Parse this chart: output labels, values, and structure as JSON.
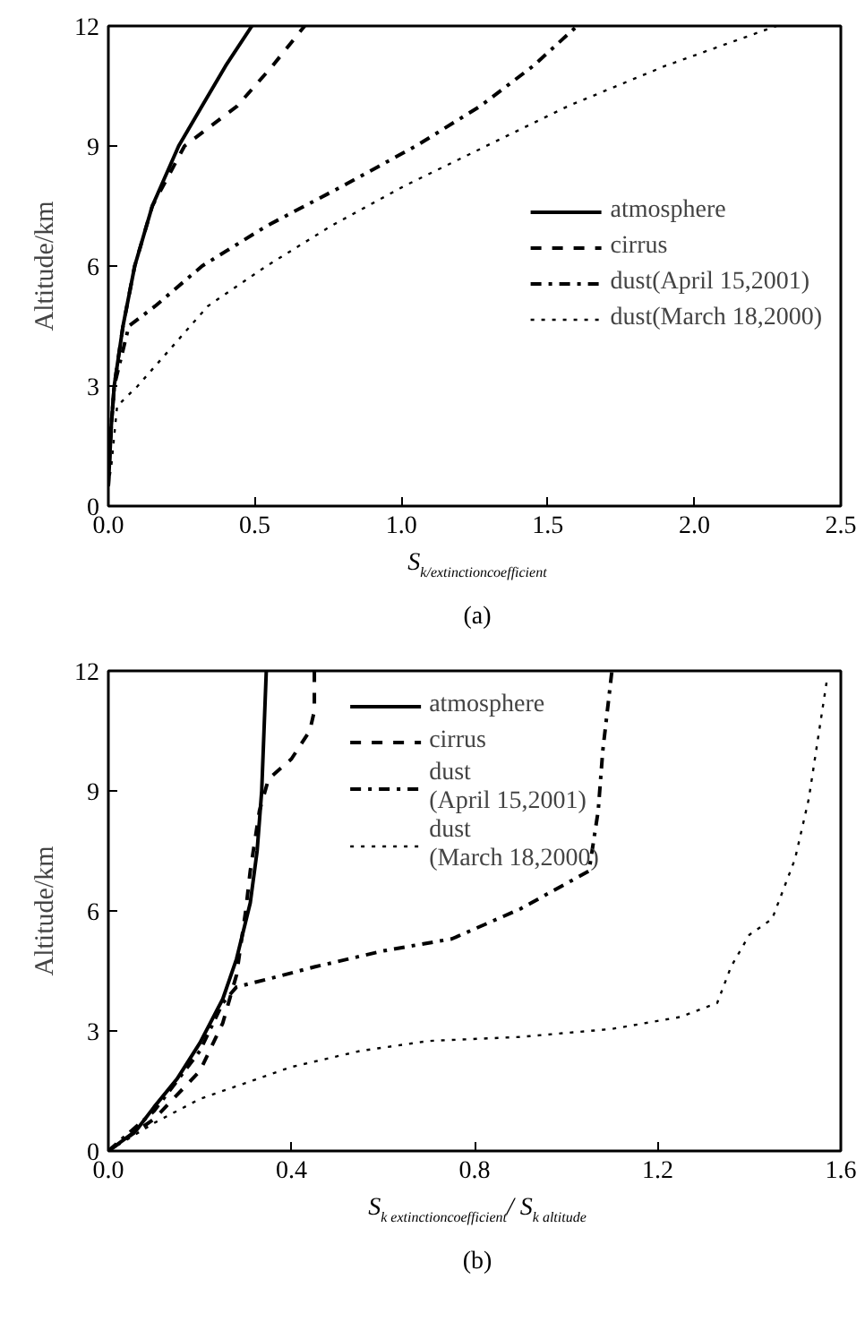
{
  "chart_data": [
    {
      "type": "line",
      "xlabel": "S$_{k/extinctioncoefficient}$",
      "ylabel": "Altitude/km",
      "annotations": [
        "(a)"
      ],
      "xlim": [
        0,
        2.5
      ],
      "ylim": [
        0,
        12
      ],
      "xticks": [
        {
          "value": 0,
          "label": "0.0"
        },
        0.5,
        {
          "value": 1,
          "label": "1.0"
        },
        1.5,
        {
          "value": 2,
          "label": "2.0"
        },
        2.5
      ],
      "yticks": [
        0,
        3,
        6,
        9,
        12
      ],
      "grid": false,
      "legend": "right",
      "series": [
        {
          "name": "atmosphere",
          "color": "#000000",
          "line_style": "solid",
          "x": [
            0.0,
            0.01,
            0.02,
            0.05,
            0.09,
            0.15,
            0.24,
            0.32,
            0.4,
            0.49
          ],
          "values": [
            0.5,
            2,
            3,
            4.5,
            6,
            7.5,
            9,
            10,
            11,
            12
          ]
        },
        {
          "name": "cirrus",
          "color": "#000000",
          "line_style": "dashed",
          "x": [
            0.0,
            0.01,
            0.02,
            0.05,
            0.09,
            0.15,
            0.26,
            0.44,
            0.56,
            0.67
          ],
          "values": [
            0.5,
            2,
            3,
            4.5,
            6,
            7.5,
            9,
            10,
            11,
            12
          ]
        },
        {
          "name": "dust(April 15,2001)",
          "color": "#000000",
          "line_style": "dashdot",
          "x": [
            0.0,
            0.01,
            0.02,
            0.07,
            0.16,
            0.32,
            0.54,
            0.8,
            1.05,
            1.27,
            1.45,
            1.6
          ],
          "values": [
            1,
            2,
            3,
            4.5,
            5,
            6,
            7,
            8,
            9,
            10,
            11,
            12
          ]
        },
        {
          "name": "dust(March 18,2000)",
          "color": "#000000",
          "line_style": "dotted",
          "x": [
            0.0,
            0.01,
            0.03,
            0.1,
            0.22,
            0.34,
            0.54,
            0.76,
            1.01,
            1.29,
            1.57,
            1.9,
            2.28
          ],
          "values": [
            0.5,
            1,
            2.5,
            3,
            4,
            5,
            6,
            7,
            8,
            9,
            10,
            11,
            12
          ]
        }
      ]
    },
    {
      "type": "line",
      "xlabel": "S$_{k extinctioncoefficient}$/ S$_{k altitude}$",
      "ylabel": "Altitude/km",
      "annotations": [
        "(b)"
      ],
      "xlim": [
        0,
        1.6
      ],
      "ylim": [
        0,
        12
      ],
      "xticks": [
        {
          "value": 0,
          "label": "0.0"
        },
        0.4,
        0.8,
        1.2,
        1.6
      ],
      "yticks": [
        0,
        3,
        6,
        9,
        12
      ],
      "grid": false,
      "legend": "top",
      "series": [
        {
          "name": "atmosphere",
          "color": "#000000",
          "line_style": "solid",
          "x": [
            0,
            0.06,
            0.1,
            0.15,
            0.2,
            0.25,
            0.28,
            0.31,
            0.325,
            0.335,
            0.34,
            0.345
          ],
          "values": [
            0,
            0.5,
            1.1,
            1.8,
            2.7,
            3.8,
            4.8,
            6.2,
            7.5,
            9,
            10.5,
            12
          ]
        },
        {
          "name": "cirrus",
          "color": "#000000",
          "line_style": "dashed",
          "x": [
            0,
            0.1,
            0.2,
            0.25,
            0.28,
            0.3,
            0.31,
            0.33,
            0.35,
            0.4,
            0.44,
            0.45,
            0.45
          ],
          "values": [
            0,
            0.8,
            2,
            3.2,
            4.4,
            6,
            7,
            8.5,
            9.3,
            9.8,
            10.5,
            11,
            12
          ]
        },
        {
          "name": "dust\n(April 15,2001)",
          "color": "#000000",
          "line_style": "dashdot",
          "x": [
            0,
            0.1,
            0.2,
            0.25,
            0.28,
            0.35,
            0.45,
            0.6,
            0.75,
            0.9,
            1.05,
            1.07,
            1.08,
            1.1
          ],
          "values": [
            0,
            1,
            2.5,
            3.7,
            4.1,
            4.3,
            4.6,
            5,
            5.3,
            6.05,
            7,
            8.5,
            10,
            12
          ]
        },
        {
          "name": "dust\n(March 18,2000)",
          "color": "#000000",
          "line_style": "dotted",
          "x": [
            0,
            0.1,
            0.2,
            0.3,
            0.4,
            0.55,
            0.7,
            0.9,
            1.1,
            1.25,
            1.33,
            1.36,
            1.4,
            1.45,
            1.5,
            1.53,
            1.55,
            1.57
          ],
          "values": [
            0,
            0.7,
            1.3,
            1.7,
            2.1,
            2.5,
            2.75,
            2.85,
            3.05,
            3.35,
            3.7,
            4.6,
            5.4,
            5.8,
            7.3,
            8.8,
            10.3,
            11.8
          ]
        }
      ]
    }
  ]
}
